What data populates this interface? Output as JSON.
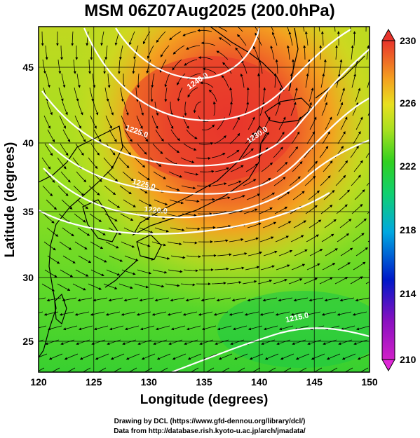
{
  "title": "MSM 06Z07Aug2025 (200.0hPa)",
  "xlabel": "Longitude (degrees)",
  "ylabel": "Latitude  (degrees)",
  "x_ticks": [
    "120",
    "125",
    "130",
    "135",
    "140",
    "145",
    "150"
  ],
  "y_ticks": [
    "25",
    "30",
    "35",
    "40",
    "45"
  ],
  "colorbar_ticks": [
    "230",
    "226",
    "222",
    "218",
    "214",
    "210"
  ],
  "contour_labels": [
    "1240.0",
    "1225.0",
    "1230.0",
    "1225.0",
    "1220.0",
    "1215.0",
    "1210.0"
  ],
  "credits": {
    "line1": "Drawing by DCL (https://www.gfd-dennou.org/library/dcl/)",
    "line2": "Data from http://database.rish.kyoto-u.ac.jp/arch/jmadata/"
  },
  "colors": {
    "hot": "#e8342c",
    "warm": "#f4a020",
    "mid": "#c8e020",
    "cool": "#22cc30",
    "cold": "#0030c8",
    "coldest": "#d020c8"
  }
}
